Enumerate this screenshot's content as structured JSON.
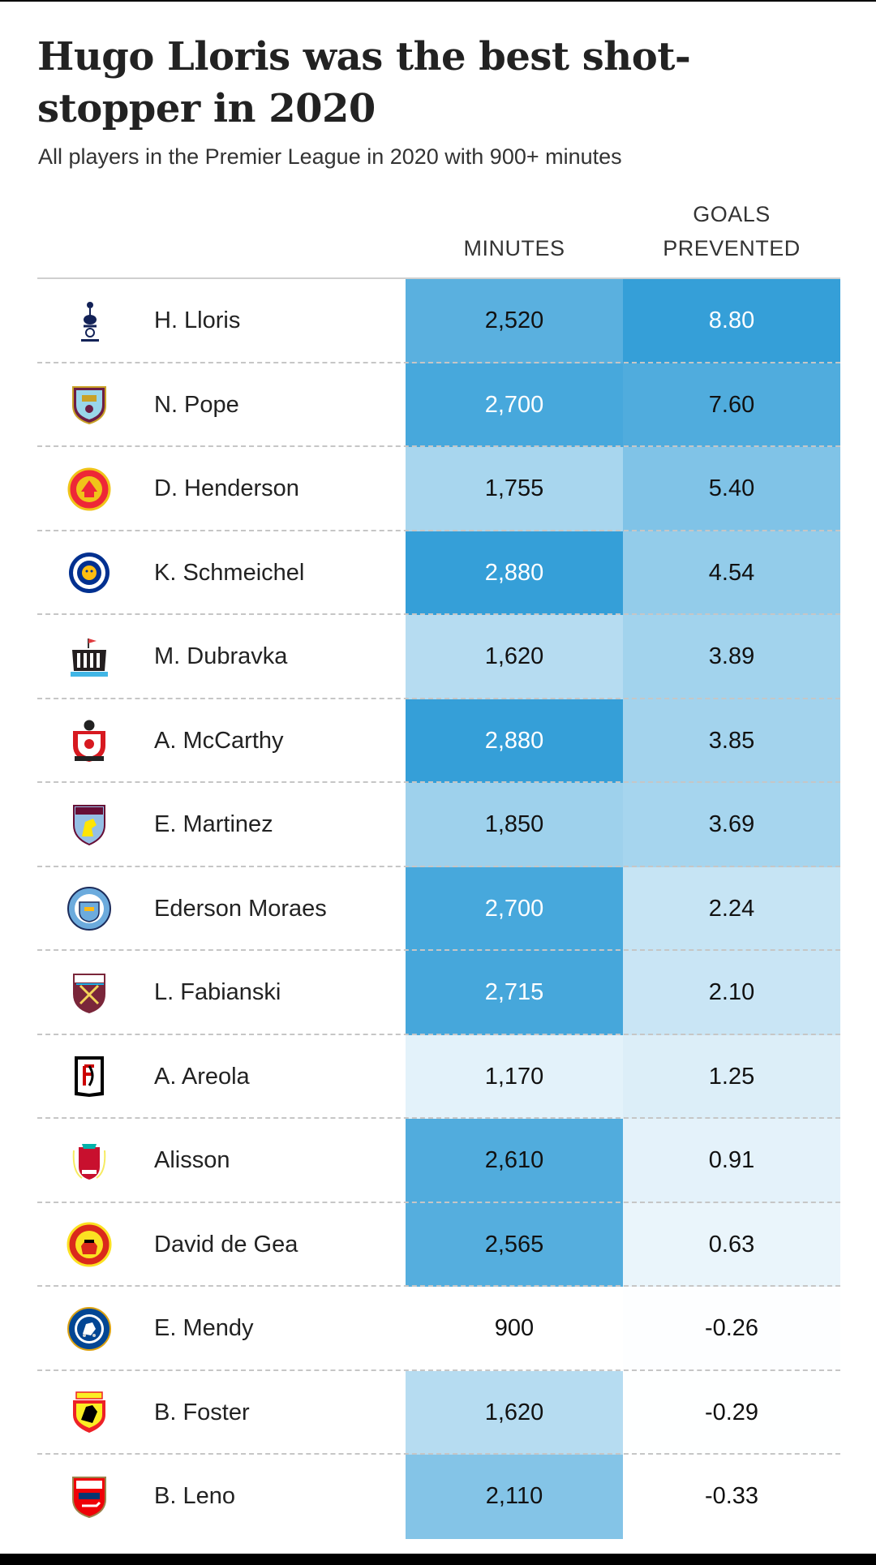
{
  "title": "Hugo Lloris was the best shot-stopper in 2020",
  "subtitle": "All players in the Premier League in 2020 with 900+ minutes",
  "columns": {
    "minutes": "MINUTES",
    "goals_prevented": "GOALS PREVENTED"
  },
  "colors": {
    "scale_low": "#ffffff",
    "scale_high": "#359fd8",
    "text_dark": "#111111",
    "text_light": "#ffffff"
  },
  "chart_data": {
    "type": "table",
    "columns": [
      "",
      "",
      "MINUTES",
      "GOALS PREVENTED"
    ],
    "rows": [
      {
        "player": "H. Lloris",
        "club_logo": "tottenham-logo",
        "minutes": "2,520",
        "goals_prevented": "8.80",
        "minutes_value": 2520,
        "goals_value": 8.8
      },
      {
        "player": "N. Pope",
        "club_logo": "burnley-logo",
        "minutes": "2,700",
        "goals_prevented": "7.60",
        "minutes_value": 2700,
        "goals_value": 7.6
      },
      {
        "player": "D. Henderson",
        "club_logo": "sheffield-united-logo",
        "minutes": "1,755",
        "goals_prevented": "5.40",
        "minutes_value": 1755,
        "goals_value": 5.4
      },
      {
        "player": "K. Schmeichel",
        "club_logo": "leicester-logo",
        "minutes": "2,880",
        "goals_prevented": "4.54",
        "minutes_value": 2880,
        "goals_value": 4.54
      },
      {
        "player": "M. Dubravka",
        "club_logo": "newcastle-logo",
        "minutes": "1,620",
        "goals_prevented": "3.89",
        "minutes_value": 1620,
        "goals_value": 3.89
      },
      {
        "player": "A. McCarthy",
        "club_logo": "southampton-logo",
        "minutes": "2,880",
        "goals_prevented": "3.85",
        "minutes_value": 2880,
        "goals_value": 3.85
      },
      {
        "player": "E. Martinez",
        "club_logo": "aston-villa-logo",
        "minutes": "1,850",
        "goals_prevented": "3.69",
        "minutes_value": 1850,
        "goals_value": 3.69
      },
      {
        "player": "Ederson Moraes",
        "club_logo": "man-city-logo",
        "minutes": "2,700",
        "goals_prevented": "2.24",
        "minutes_value": 2700,
        "goals_value": 2.24
      },
      {
        "player": "L. Fabianski",
        "club_logo": "west-ham-logo",
        "minutes": "2,715",
        "goals_prevented": "2.10",
        "minutes_value": 2715,
        "goals_value": 2.1
      },
      {
        "player": "A. Areola",
        "club_logo": "fulham-logo",
        "minutes": "1,170",
        "goals_prevented": "1.25",
        "minutes_value": 1170,
        "goals_value": 1.25
      },
      {
        "player": "Alisson",
        "club_logo": "liverpool-logo",
        "minutes": "2,610",
        "goals_prevented": "0.91",
        "minutes_value": 2610,
        "goals_value": 0.91
      },
      {
        "player": "David de Gea",
        "club_logo": "man-united-logo",
        "minutes": "2,565",
        "goals_prevented": "0.63",
        "minutes_value": 2565,
        "goals_value": 0.63
      },
      {
        "player": "E. Mendy",
        "club_logo": "chelsea-logo",
        "minutes": "900",
        "goals_prevented": "-0.26",
        "minutes_value": 900,
        "goals_value": -0.26
      },
      {
        "player": "B. Foster",
        "club_logo": "watford-logo",
        "minutes": "1,620",
        "goals_prevented": "-0.29",
        "minutes_value": 1620,
        "goals_value": -0.29
      },
      {
        "player": "B. Leno",
        "club_logo": "arsenal-logo",
        "minutes": "2,110",
        "goals_prevented": "-0.33",
        "minutes_value": 2110,
        "goals_value": -0.33
      }
    ]
  }
}
